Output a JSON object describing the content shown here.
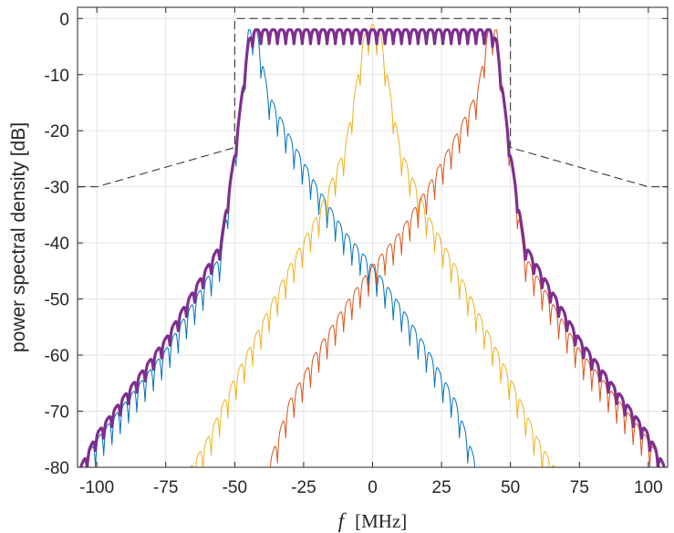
{
  "chart_data": {
    "type": "line",
    "title": "",
    "xlabel_symbol": "f",
    "xlabel_unit": "[MHz]",
    "ylabel": "power spectral density [dB]",
    "xlim": [
      -107,
      107
    ],
    "ylim": [
      -80,
      2
    ],
    "grid": true,
    "x_ticks": [
      -100,
      -75,
      -50,
      -25,
      0,
      25,
      50,
      75,
      100
    ],
    "x_tick_labels": [
      "-100",
      "-75",
      "-50",
      "-25",
      "0",
      "25",
      "50",
      "75",
      "100"
    ],
    "y_ticks": [
      0,
      -10,
      -20,
      -30,
      -40,
      -50,
      -60,
      -70,
      -80
    ],
    "y_tick_labels": [
      "0",
      "-10",
      "-20",
      "-30",
      "-40",
      "-50",
      "-60",
      "-70",
      "-80"
    ],
    "colors": {
      "blue": "#0072BD",
      "orange": "#D95319",
      "yellow": "#EDB120",
      "purple": "#7E2F8E",
      "mask": "#262626",
      "grid": "#e3e3e3",
      "axis": "#262626"
    },
    "series": [
      {
        "color": "blue",
        "envelope": [
          [
            -106,
            -80
          ],
          [
            -100,
            -75
          ],
          [
            -75,
            -59
          ],
          [
            -55,
            -42
          ],
          [
            -50,
            -24
          ],
          [
            -45,
            -2
          ],
          [
            -42,
            -2
          ],
          [
            -38,
            -13
          ],
          [
            -30,
            -21
          ],
          [
            -20,
            -30
          ],
          [
            -10,
            -38
          ],
          [
            0,
            -44
          ],
          [
            10,
            -51
          ],
          [
            20,
            -59
          ],
          [
            30,
            -68
          ],
          [
            38,
            -80
          ]
        ],
        "ripple_period": 3.0,
        "ripple_depth": 4.5
      },
      {
        "color": "yellow",
        "envelope": [
          [
            -66,
            -80
          ],
          [
            -60,
            -75
          ],
          [
            -50,
            -64
          ],
          [
            -40,
            -54
          ],
          [
            -30,
            -44
          ],
          [
            -20,
            -35
          ],
          [
            -10,
            -23
          ],
          [
            -6,
            -12
          ],
          [
            -3,
            -3
          ],
          [
            0,
            -1
          ],
          [
            3,
            -3
          ],
          [
            6,
            -12
          ],
          [
            10,
            -23
          ],
          [
            20,
            -35
          ],
          [
            30,
            -44
          ],
          [
            40,
            -54
          ],
          [
            50,
            -64
          ],
          [
            60,
            -75
          ],
          [
            66,
            -80
          ]
        ],
        "ripple_period": 3.0,
        "ripple_depth": 4.5
      },
      {
        "color": "orange",
        "envelope": [
          [
            -38,
            -80
          ],
          [
            -30,
            -68
          ],
          [
            -20,
            -59
          ],
          [
            -10,
            -51
          ],
          [
            0,
            -44
          ],
          [
            10,
            -38
          ],
          [
            20,
            -30
          ],
          [
            30,
            -21
          ],
          [
            38,
            -13
          ],
          [
            42,
            -2
          ],
          [
            45,
            -2
          ],
          [
            50,
            -24
          ],
          [
            55,
            -42
          ],
          [
            75,
            -59
          ],
          [
            100,
            -75
          ],
          [
            106,
            -80
          ]
        ],
        "ripple_period": 3.0,
        "ripple_depth": 4.5
      },
      {
        "color": "purple",
        "envelope": [
          [
            -106,
            -80
          ],
          [
            -100,
            -74
          ],
          [
            -75,
            -57
          ],
          [
            -55,
            -40
          ],
          [
            -50,
            -24
          ],
          [
            -45,
            -4
          ],
          [
            -43,
            -2
          ],
          [
            43,
            -2
          ],
          [
            45,
            -4
          ],
          [
            50,
            -24
          ],
          [
            55,
            -40
          ],
          [
            75,
            -57
          ],
          [
            100,
            -74
          ],
          [
            106,
            -80
          ]
        ],
        "ripple_period": 3.0,
        "ripple_depth": 2.5,
        "line_width": "thick"
      }
    ],
    "mask": {
      "style": "dashed",
      "points": [
        [
          -107,
          -30
        ],
        [
          -100,
          -30
        ],
        [
          -50,
          -23
        ],
        [
          -50,
          0
        ],
        [
          50,
          0
        ],
        [
          50,
          -23
        ],
        [
          100,
          -30
        ],
        [
          107,
          -30
        ]
      ]
    }
  }
}
